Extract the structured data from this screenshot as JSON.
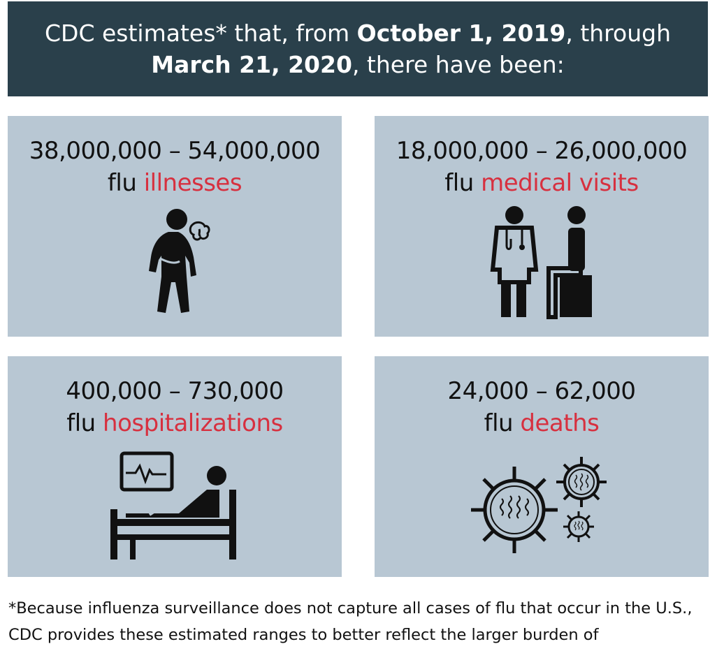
{
  "header": {
    "part1": "CDC estimates* that, from ",
    "date_start": "October 1, 2019",
    "part2": ", through",
    "date_end": "March 21, 2020",
    "part3": ", there have been:"
  },
  "stats": [
    {
      "range": "38,000,000 – 54,000,000",
      "prefix": "flu ",
      "accent": "illnesses",
      "icon": "sick-person-icon"
    },
    {
      "range": "18,000,000 – 26,000,000",
      "prefix": "flu ",
      "accent": "medical visits",
      "icon": "doctor-patient-icon"
    },
    {
      "range": "400,000 – 730,000",
      "prefix": "flu ",
      "accent": "hospitalizations",
      "icon": "hospital-bed-icon"
    },
    {
      "range": "24,000 – 62,000",
      "prefix": "flu ",
      "accent": "deaths",
      "icon": "virus-icon"
    }
  ],
  "footnote": "*Because influenza surveillance does not capture all cases of flu that occur in the U.S., CDC provides these estimated ranges to better reflect the larger burden of",
  "colors": {
    "header_bg": "#2a404b",
    "card_bg": "#b8c7d3",
    "accent": "#d7303f"
  }
}
